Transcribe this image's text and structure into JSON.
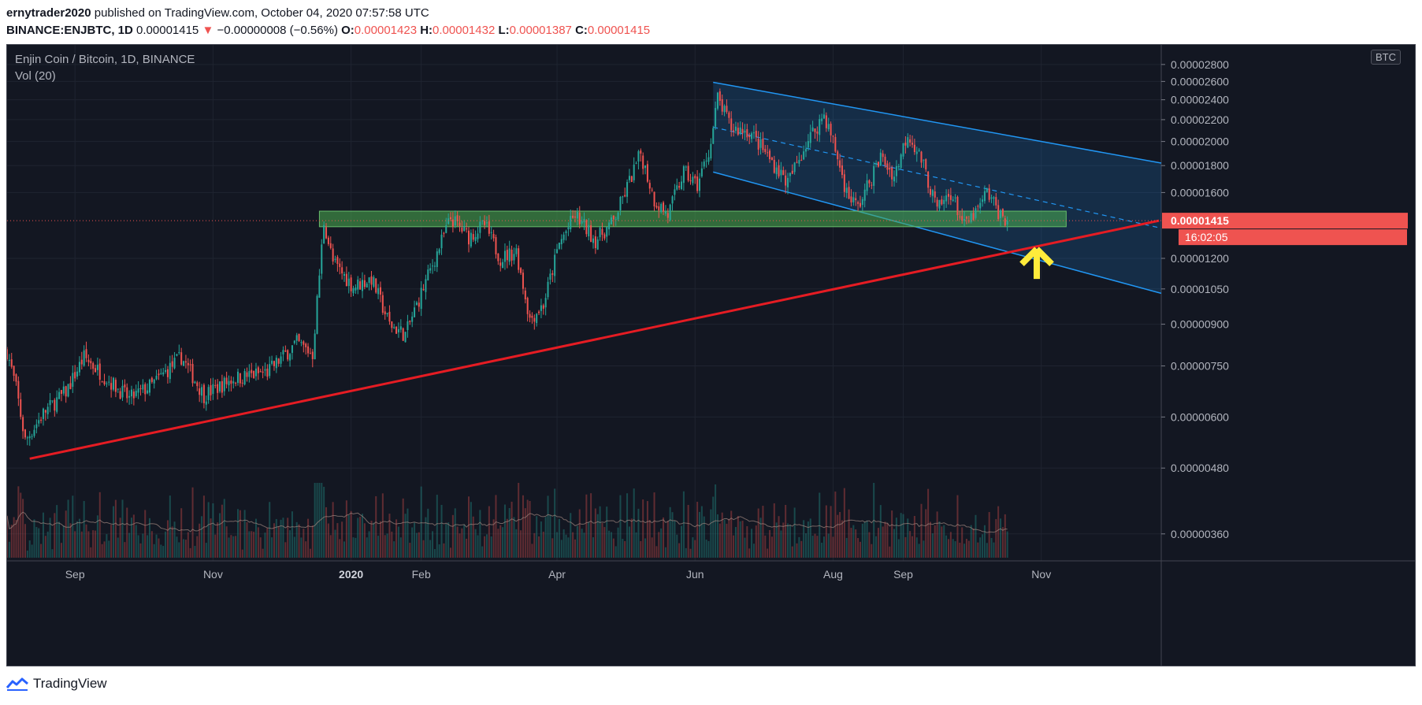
{
  "header": {
    "author": "ernytrader2020",
    "published_text": "published on TradingView.com, October 04, 2020 07:57:58 UTC"
  },
  "ohlc": {
    "symbol": "BINANCE:ENJBTC, 1D",
    "last": "0.00001415",
    "change": "−0.00000008 (−0.56%)",
    "open_label": "O:",
    "open": "0.00001423",
    "high_label": "H:",
    "high": "0.00001432",
    "low_label": "L:",
    "low": "0.00001387",
    "close_label": "C:",
    "close": "0.00001415"
  },
  "legend": {
    "title": "Enjin Coin / Bitcoin, 1D, BINANCE",
    "volume": "Vol (20)",
    "currency": "BTC"
  },
  "price_label": {
    "value": "0.00001415",
    "countdown": "16:02:05"
  },
  "footer": {
    "brand": "TradingView"
  },
  "colors": {
    "background": "#131722",
    "up": "#26a69a",
    "down": "#ef5350",
    "channel": "#2196f3",
    "support_zone": "#4caf50",
    "trendline": "#e51c23",
    "arrow": "#ffeb3b"
  },
  "chart_data": {
    "type": "candlestick",
    "title": "Enjin Coin / Bitcoin, 1D, BINANCE",
    "y_scale": "log",
    "ylim": [
      3.2e-06,
      3.05e-05
    ],
    "y_ticks": [
      "0.00002800",
      "0.00002600",
      "0.00002400",
      "0.00002200",
      "0.00002000",
      "0.00001800",
      "0.00001600",
      "0.00001200",
      "0.00001050",
      "0.00000900",
      "0.00000750",
      "0.00000600",
      "0.00000480",
      "0.00000360"
    ],
    "x_ticks": [
      {
        "label": "Sep",
        "date": "2019-09-01"
      },
      {
        "label": "Nov",
        "date": "2019-11-01"
      },
      {
        "label": "2020",
        "date": "2020-01-01",
        "bold": true
      },
      {
        "label": "Feb",
        "date": "2020-02-01"
      },
      {
        "label": "Apr",
        "date": "2020-04-01"
      },
      {
        "label": "Jun",
        "date": "2020-06-01"
      },
      {
        "label": "Aug",
        "date": "2020-08-01"
      },
      {
        "label": "Sep",
        "date": "2020-09-01"
      },
      {
        "label": "Nov",
        "date": "2020-11-01"
      }
    ],
    "x_range": [
      "2019-08-02",
      "2020-12-24"
    ],
    "price_path": [
      {
        "date": "2019-08-02",
        "price": 8e-06
      },
      {
        "date": "2019-08-06",
        "price": 6.8e-06
      },
      {
        "date": "2019-08-10",
        "price": 5.4e-06
      },
      {
        "date": "2019-08-18",
        "price": 6.1e-06
      },
      {
        "date": "2019-08-28",
        "price": 6.7e-06
      },
      {
        "date": "2019-09-05",
        "price": 7.8e-06
      },
      {
        "date": "2019-09-15",
        "price": 7.1e-06
      },
      {
        "date": "2019-09-25",
        "price": 6.5e-06
      },
      {
        "date": "2019-10-05",
        "price": 6.9e-06
      },
      {
        "date": "2019-10-18",
        "price": 7.8e-06
      },
      {
        "date": "2019-10-28",
        "price": 6.6e-06
      },
      {
        "date": "2019-11-10",
        "price": 7.1e-06
      },
      {
        "date": "2019-11-25",
        "price": 7.3e-06
      },
      {
        "date": "2019-12-08",
        "price": 8.3e-06
      },
      {
        "date": "2019-12-15",
        "price": 7.9e-06
      },
      {
        "date": "2019-12-20",
        "price": 1.41e-05
      },
      {
        "date": "2019-12-24",
        "price": 1.18e-05
      },
      {
        "date": "2020-01-02",
        "price": 1.06e-05
      },
      {
        "date": "2020-01-10",
        "price": 1.1e-05
      },
      {
        "date": "2020-01-18",
        "price": 9e-06
      },
      {
        "date": "2020-01-25",
        "price": 8.6e-06
      },
      {
        "date": "2020-02-01",
        "price": 1.03e-05
      },
      {
        "date": "2020-02-08",
        "price": 1.23e-05
      },
      {
        "date": "2020-02-14",
        "price": 1.43e-05
      },
      {
        "date": "2020-02-22",
        "price": 1.32e-05
      },
      {
        "date": "2020-02-29",
        "price": 1.39e-05
      },
      {
        "date": "2020-03-07",
        "price": 1.2e-05
      },
      {
        "date": "2020-03-14",
        "price": 1.24e-05
      },
      {
        "date": "2020-03-20",
        "price": 9.2e-06
      },
      {
        "date": "2020-03-26",
        "price": 9.8e-06
      },
      {
        "date": "2020-04-02",
        "price": 1.28e-05
      },
      {
        "date": "2020-04-09",
        "price": 1.45e-05
      },
      {
        "date": "2020-04-18",
        "price": 1.3e-05
      },
      {
        "date": "2020-04-26",
        "price": 1.41e-05
      },
      {
        "date": "2020-05-03",
        "price": 1.68e-05
      },
      {
        "date": "2020-05-08",
        "price": 1.9e-05
      },
      {
        "date": "2020-05-14",
        "price": 1.55e-05
      },
      {
        "date": "2020-05-20",
        "price": 1.45e-05
      },
      {
        "date": "2020-05-27",
        "price": 1.75e-05
      },
      {
        "date": "2020-06-02",
        "price": 1.65e-05
      },
      {
        "date": "2020-06-08",
        "price": 1.98e-05
      },
      {
        "date": "2020-06-11",
        "price": 2.42e-05
      },
      {
        "date": "2020-06-17",
        "price": 2.12e-05
      },
      {
        "date": "2020-06-25",
        "price": 2.09e-05
      },
      {
        "date": "2020-07-05",
        "price": 1.83e-05
      },
      {
        "date": "2020-07-12",
        "price": 1.67e-05
      },
      {
        "date": "2020-07-20",
        "price": 1.98e-05
      },
      {
        "date": "2020-07-28",
        "price": 2.25e-05
      },
      {
        "date": "2020-08-01",
        "price": 2e-05
      },
      {
        "date": "2020-08-07",
        "price": 1.6e-05
      },
      {
        "date": "2020-08-12",
        "price": 1.5e-05
      },
      {
        "date": "2020-08-22",
        "price": 1.87e-05
      },
      {
        "date": "2020-08-28",
        "price": 1.72e-05
      },
      {
        "date": "2020-09-03",
        "price": 2.08e-05
      },
      {
        "date": "2020-09-09",
        "price": 1.85e-05
      },
      {
        "date": "2020-09-16",
        "price": 1.48e-05
      },
      {
        "date": "2020-09-22",
        "price": 1.6e-05
      },
      {
        "date": "2020-09-28",
        "price": 1.38e-05
      },
      {
        "date": "2020-10-04",
        "price": 1.48e-05
      },
      {
        "date": "2020-10-08",
        "price": 1.6e-05
      },
      {
        "date": "2020-10-14",
        "price": 1.45e-05
      },
      {
        "date": "2020-10-17",
        "price": 1.415e-05
      }
    ],
    "annotations": {
      "support_zone": {
        "from": "2019-12-18",
        "to": "2020-11-12",
        "low": 1.378e-05,
        "high": 1.475e-05
      },
      "trendline": {
        "points": [
          {
            "date": "2019-08-12",
            "price": 5e-06
          },
          {
            "date": "2020-12-23",
            "price": 1.415e-05
          }
        ]
      },
      "channel": {
        "upper": [
          {
            "date": "2020-06-09",
            "price": 2.59e-05
          },
          {
            "date": "2020-12-24",
            "price": 1.82e-05
          }
        ],
        "lower": [
          {
            "date": "2020-06-09",
            "price": 1.75e-05
          },
          {
            "date": "2020-12-24",
            "price": 1.03e-05
          }
        ]
      },
      "arrow": {
        "date": "2020-10-30",
        "price": 1.25e-05
      }
    }
  }
}
